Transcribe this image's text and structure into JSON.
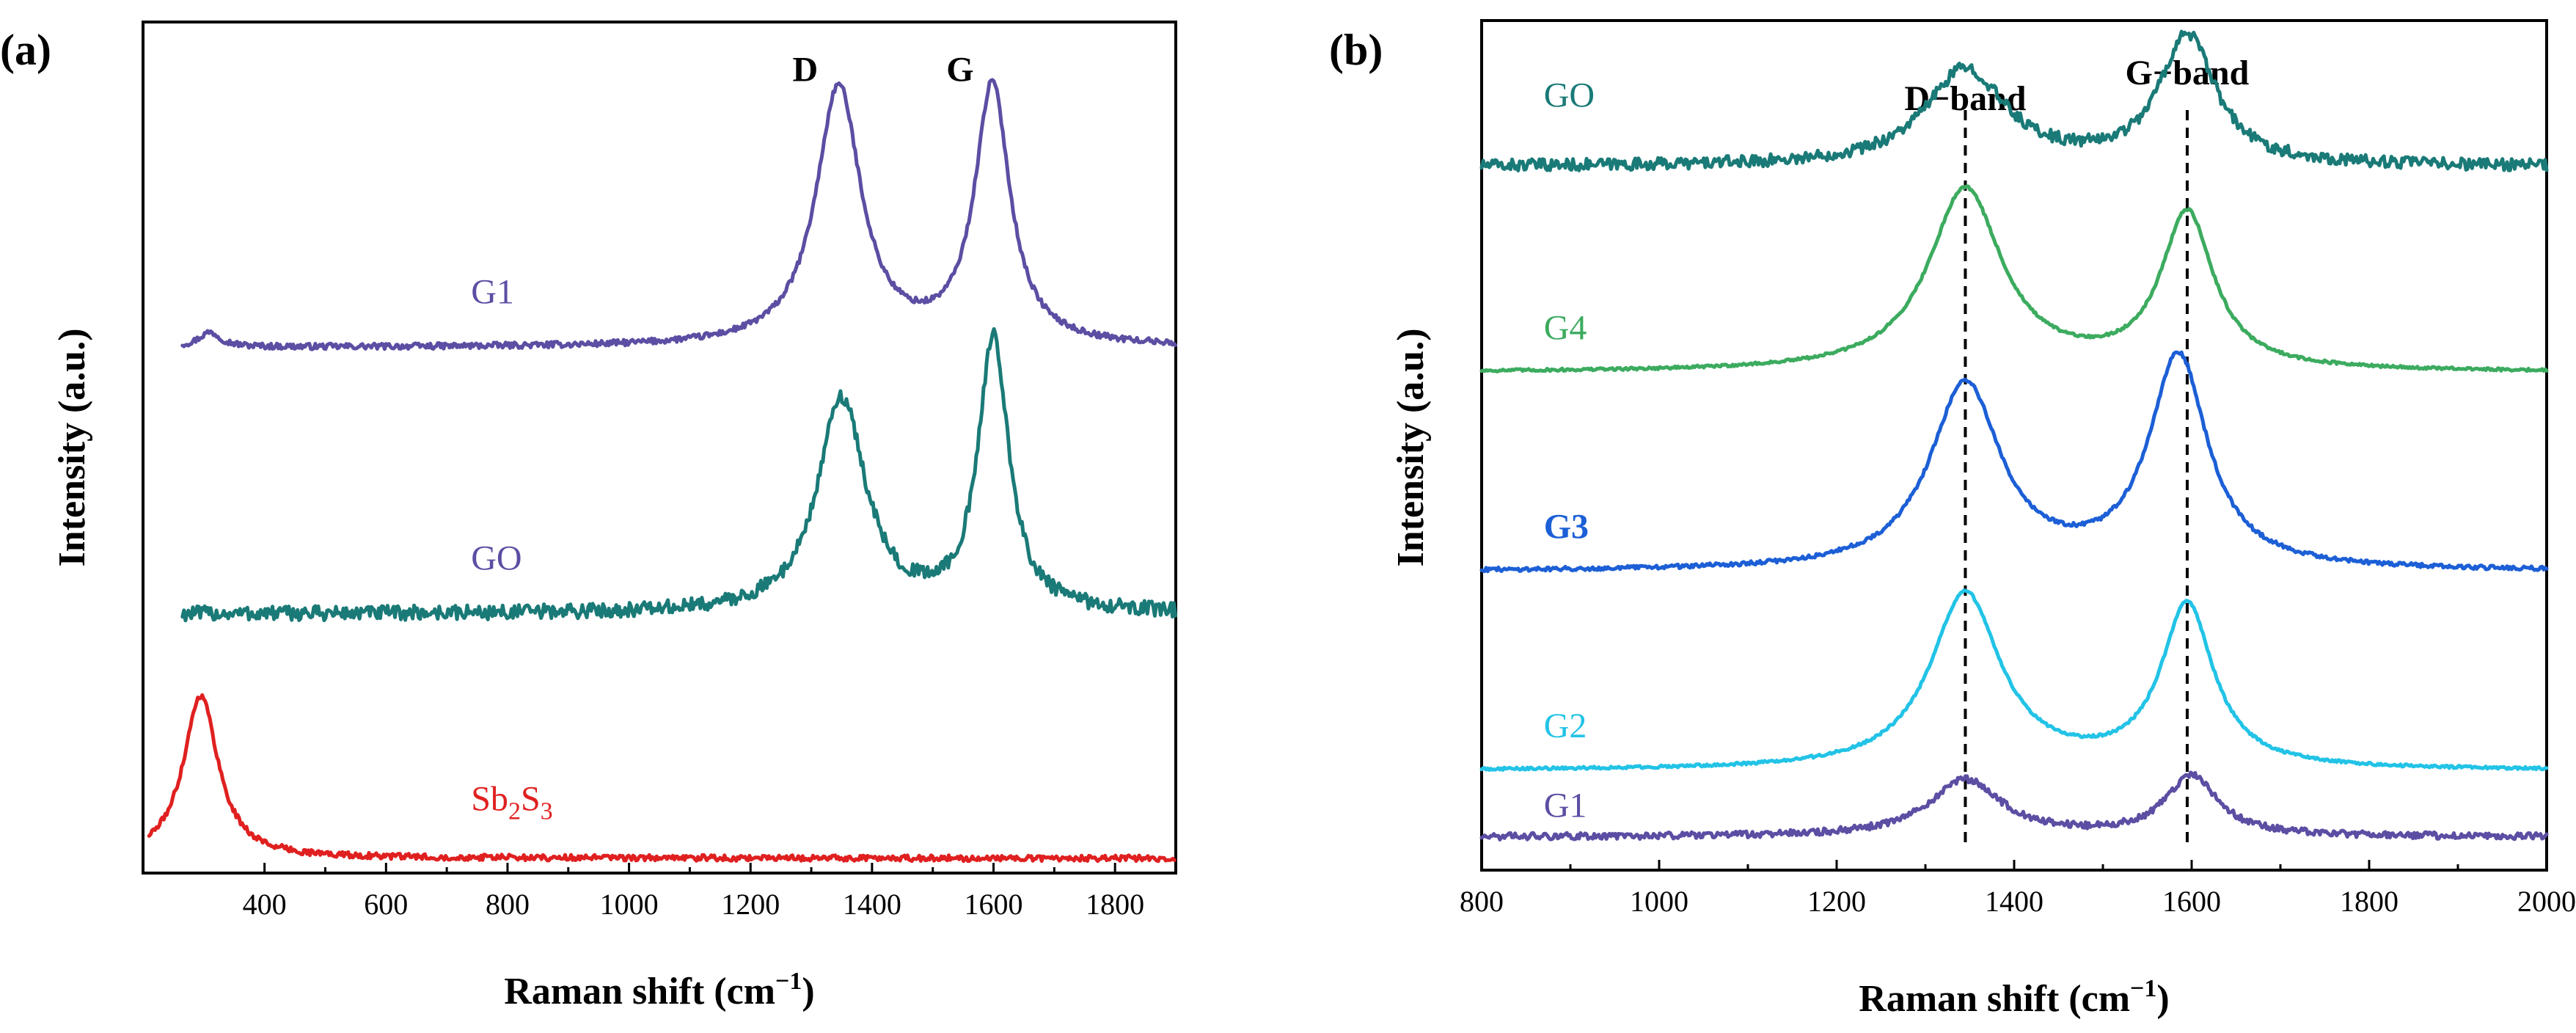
{
  "chart_data": [
    {
      "panel": "(a)",
      "type": "line",
      "xlabel": "Raman shift",
      "xlabel_unit_base": "cm",
      "xlabel_unit_exp": "−1",
      "ylabel": "Intensity (a.u.)",
      "xlim": [
        200,
        1900
      ],
      "xticks": [
        400,
        600,
        800,
        1000,
        1200,
        1400,
        1600,
        1800
      ],
      "peak_labels": [
        {
          "text": "D",
          "x": 1290,
          "y": 10.7
        },
        {
          "text": "G",
          "x": 1545,
          "y": 10.7
        }
      ],
      "series": [
        {
          "name": "G1",
          "base": "G1",
          "sub1": "",
          "mid": "",
          "sub2": "",
          "color": "#5b4ea3",
          "label_color": "#5b4ea3",
          "label_x": 740,
          "label_y": 7.7,
          "xmin": 265,
          "baseline": 7.1,
          "noise": 0.04,
          "peaks": [
            {
              "x": 310,
              "h": 0.2,
              "w": 22
            },
            {
              "x": 1345,
              "h": 3.5,
              "w": 45
            },
            {
              "x": 1598,
              "h": 3.5,
              "w": 35
            }
          ]
        },
        {
          "name": "GO",
          "base": "GO",
          "sub1": "",
          "mid": "",
          "sub2": "",
          "color": "#1a7a77",
          "label_color": "#5b4ea3",
          "label_x": 740,
          "label_y": 4.1,
          "xmin": 265,
          "baseline": 3.5,
          "noise": 0.1,
          "peaks": [
            {
              "x": 1350,
              "h": 2.9,
              "w": 48
            },
            {
              "x": 1600,
              "h": 3.7,
              "w": 30
            }
          ]
        },
        {
          "name": "Sb2S3",
          "base": "Sb",
          "sub1": "2",
          "mid": "S",
          "sub2": "3",
          "color": "#e02020",
          "label_color": "#e02020",
          "label_x": 740,
          "label_y": 0.85,
          "xmin": 210,
          "baseline": 0.2,
          "noise": 0.04,
          "peaks": [
            {
              "x": 295,
              "h": 2.2,
              "w": 35
            }
          ]
        }
      ]
    },
    {
      "panel": "(b)",
      "type": "line",
      "xlabel": "Raman shift",
      "xlabel_unit_base": "cm",
      "xlabel_unit_exp": "−1",
      "ylabel": "Intensity (a.u.)",
      "xlim": [
        800,
        2000
      ],
      "xticks": [
        800,
        1000,
        1200,
        1400,
        1600,
        1800,
        2000
      ],
      "guides": [
        {
          "x": 1345,
          "label": "D−band"
        },
        {
          "x": 1595,
          "label": "G−band"
        }
      ],
      "series": [
        {
          "name": "GO",
          "color": "#1a7a77",
          "label_x": 870,
          "label_y": 11.5,
          "baseline": 10.6,
          "noise": 0.09,
          "peaks": [
            {
              "x": 1345,
              "h": 1.45,
              "w": 55
            },
            {
              "x": 1595,
              "h": 1.95,
              "w": 38
            }
          ]
        },
        {
          "name": "G4",
          "color": "#3cab5f",
          "label_x": 870,
          "label_y": 8.0,
          "baseline": 7.5,
          "noise": 0.02,
          "peaks": [
            {
              "x": 1345,
              "h": 2.75,
              "w": 50
            },
            {
              "x": 1595,
              "h": 2.35,
              "w": 36
            }
          ]
        },
        {
          "name": "G3",
          "color": "#1c5fd6",
          "label_x": 870,
          "label_y": 5.0,
          "baseline": 4.5,
          "noise": 0.03,
          "peaks": [
            {
              "x": 1345,
              "h": 2.8,
              "w": 48
            },
            {
              "x": 1585,
              "h": 3.2,
              "w": 40
            }
          ]
        },
        {
          "name": "G2",
          "color": "#22c3e6",
          "label_x": 870,
          "label_y": 2.0,
          "baseline": 1.5,
          "noise": 0.02,
          "peaks": [
            {
              "x": 1345,
              "h": 2.65,
              "w": 48
            },
            {
              "x": 1595,
              "h": 2.45,
              "w": 36
            }
          ]
        },
        {
          "name": "G1",
          "color": "#5b4ea3",
          "label_x": 870,
          "label_y": 0.8,
          "baseline": 0.5,
          "noise": 0.05,
          "peaks": [
            {
              "x": 1345,
              "h": 0.85,
              "w": 50
            },
            {
              "x": 1600,
              "h": 0.9,
              "w": 36
            }
          ]
        }
      ]
    }
  ]
}
